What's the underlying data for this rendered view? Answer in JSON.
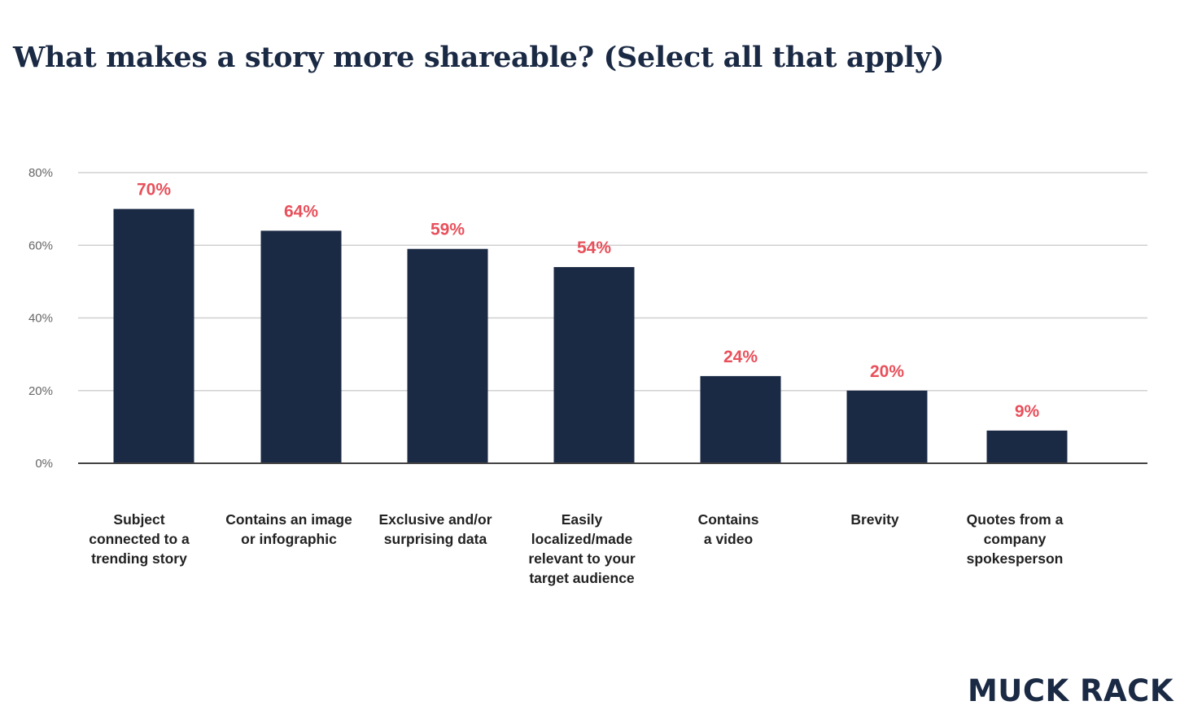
{
  "chart_data": {
    "type": "bar",
    "title": "What makes a story more shareable? (Select all that apply)",
    "categories": [
      [
        "Subject",
        "connected to a",
        "trending story"
      ],
      [
        "Contains an image",
        "or infographic"
      ],
      [
        "Exclusive and/or",
        "surprising data"
      ],
      [
        "Easily",
        "localized/made",
        "relevant to your",
        "target audience"
      ],
      [
        "Contains",
        "a video"
      ],
      [
        "Brevity"
      ],
      [
        "Quotes from a",
        "company",
        "spokesperson"
      ]
    ],
    "values": [
      70,
      64,
      59,
      54,
      24,
      20,
      9
    ],
    "value_labels": [
      "70%",
      "64%",
      "59%",
      "54%",
      "24%",
      "20%",
      "9%"
    ],
    "ylim": [
      0,
      80
    ],
    "yticks": [
      0,
      20,
      40,
      60,
      80
    ],
    "ytick_labels": [
      "0%",
      "20%",
      "40%",
      "60%",
      "80%"
    ],
    "xlabel": "",
    "ylabel": "",
    "grid": true,
    "legend": false
  },
  "colors": {
    "bar": "#1b2a44",
    "data_label": "#e8505b",
    "grid": "#d0d0d0",
    "axis": "#444444"
  },
  "logo": "MUCK RACK"
}
